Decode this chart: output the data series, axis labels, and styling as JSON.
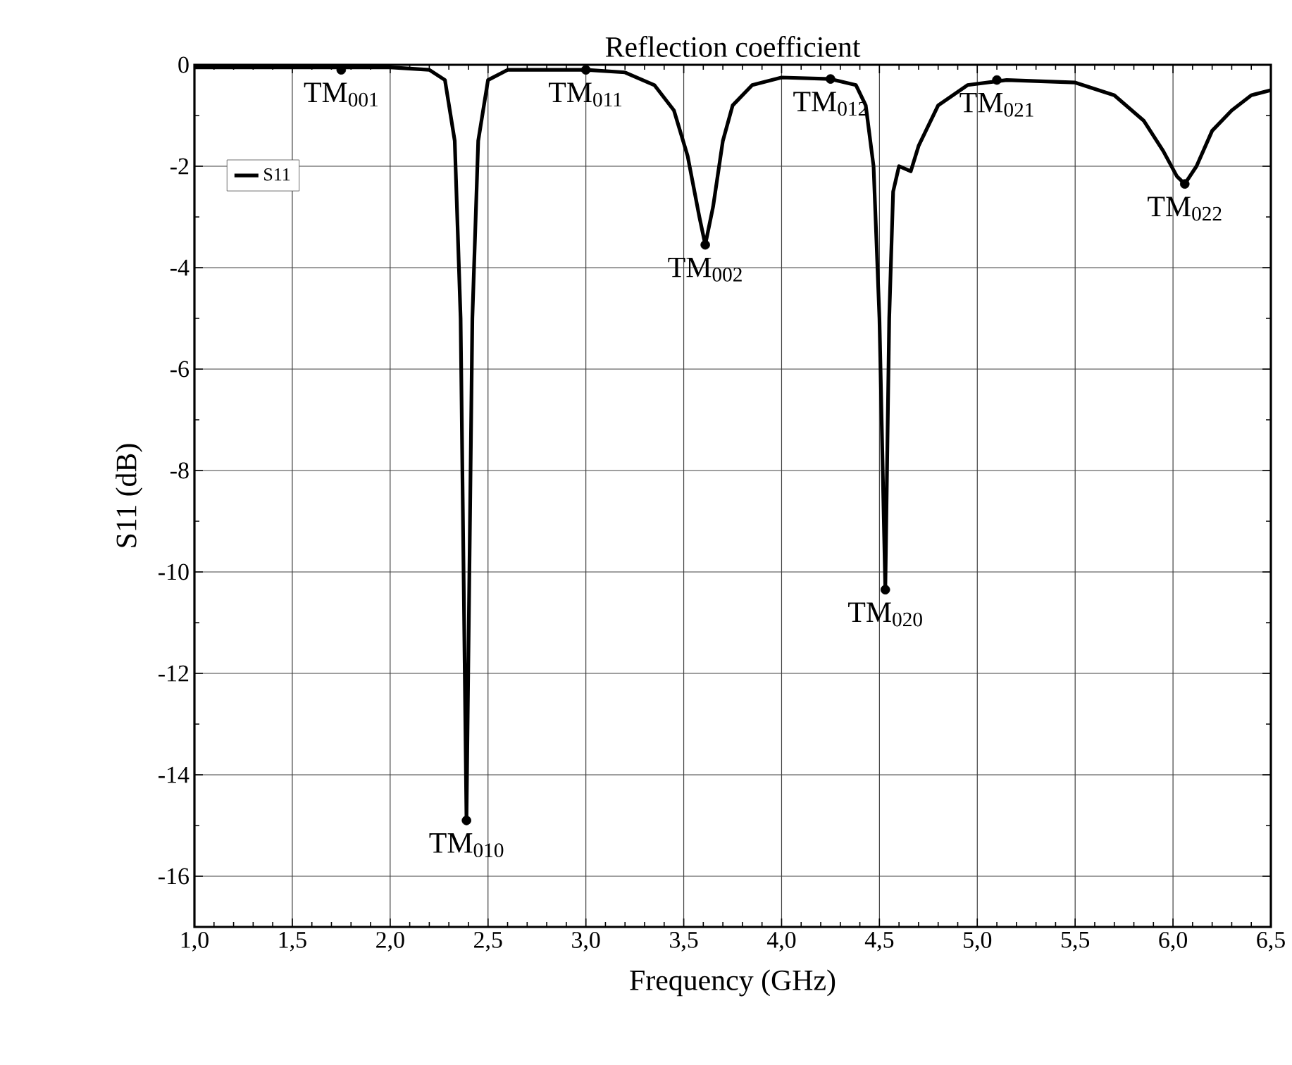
{
  "chart_data": {
    "type": "line",
    "title": "Reflection coefficient",
    "xlabel": "Frequency (GHz)",
    "ylabel": "S11 (dB)",
    "xlim": [
      1.0,
      6.5
    ],
    "ylim": [
      -17,
      0
    ],
    "xticks": [
      {
        "value": 1.0,
        "label": "1,0"
      },
      {
        "value": 1.5,
        "label": "1,5"
      },
      {
        "value": 2.0,
        "label": "2,0"
      },
      {
        "value": 2.5,
        "label": "2,5"
      },
      {
        "value": 3.0,
        "label": "3,0"
      },
      {
        "value": 3.5,
        "label": "3,5"
      },
      {
        "value": 4.0,
        "label": "4,0"
      },
      {
        "value": 4.5,
        "label": "4,5"
      },
      {
        "value": 5.0,
        "label": "5,0"
      },
      {
        "value": 5.5,
        "label": "5,5"
      },
      {
        "value": 6.0,
        "label": "6,0"
      },
      {
        "value": 6.5,
        "label": "6,5"
      }
    ],
    "yticks": [
      0,
      -2,
      -4,
      -6,
      -8,
      -10,
      -12,
      -14,
      -16
    ],
    "grid": true,
    "legend": "top left",
    "series": [
      {
        "name": "S11",
        "color": "#000000",
        "x": [
          1.0,
          1.5,
          2.0,
          2.2,
          2.28,
          2.33,
          2.36,
          2.39,
          2.42,
          2.45,
          2.5,
          2.6,
          3.0,
          3.2,
          3.35,
          3.45,
          3.52,
          3.58,
          3.61,
          3.65,
          3.7,
          3.75,
          3.85,
          4.0,
          4.25,
          4.38,
          4.43,
          4.47,
          4.5,
          4.53,
          4.55,
          4.57,
          4.6,
          4.63,
          4.66,
          4.7,
          4.8,
          4.95,
          5.15,
          5.5,
          5.7,
          5.85,
          5.95,
          6.02,
          6.06,
          6.12,
          6.2,
          6.3,
          6.4,
          6.5
        ],
        "values": [
          -0.05,
          -0.05,
          -0.05,
          -0.1,
          -0.3,
          -1.5,
          -5,
          -14.9,
          -5,
          -1.5,
          -0.3,
          -0.1,
          -0.1,
          -0.15,
          -0.4,
          -0.9,
          -1.8,
          -3,
          -3.55,
          -2.8,
          -1.5,
          -0.8,
          -0.4,
          -0.25,
          -0.28,
          -0.4,
          -0.8,
          -2,
          -5,
          -10.35,
          -5,
          -2.5,
          -2.0,
          -2.05,
          -2.1,
          -1.6,
          -0.8,
          -0.4,
          -0.3,
          -0.35,
          -0.6,
          -1.1,
          -1.7,
          -2.2,
          -2.35,
          -2.0,
          -1.3,
          -0.9,
          -0.6,
          -0.5
        ]
      },
      {
        "type": "scatter",
        "marker": "circle",
        "color": "#000000",
        "x": [
          1.75,
          2.39,
          3.0,
          3.61,
          4.25,
          4.53,
          5.1,
          6.06
        ],
        "values": [
          -0.1,
          -14.9,
          -0.1,
          -3.55,
          -0.28,
          -10.35,
          -0.3,
          -2.35
        ]
      }
    ],
    "annotations": [
      {
        "text": "TM$_{001}$",
        "x": 1.75,
        "y": -0.1
      },
      {
        "text": "TM$_{010}$",
        "x": 2.39,
        "y": -14.9
      },
      {
        "text": "TM$_{011}$",
        "x": 3.0,
        "y": -0.1
      },
      {
        "text": "TM$_{002}$",
        "x": 3.61,
        "y": -3.55
      },
      {
        "text": "TM$_{012}$",
        "x": 4.25,
        "y": -0.28
      },
      {
        "text": "TM$_{020}$",
        "x": 4.53,
        "y": -10.35
      },
      {
        "text": "TM$_{021}$",
        "x": 5.1,
        "y": -0.3
      },
      {
        "text": "TM$_{022}$",
        "x": 6.06,
        "y": -2.35
      }
    ]
  }
}
